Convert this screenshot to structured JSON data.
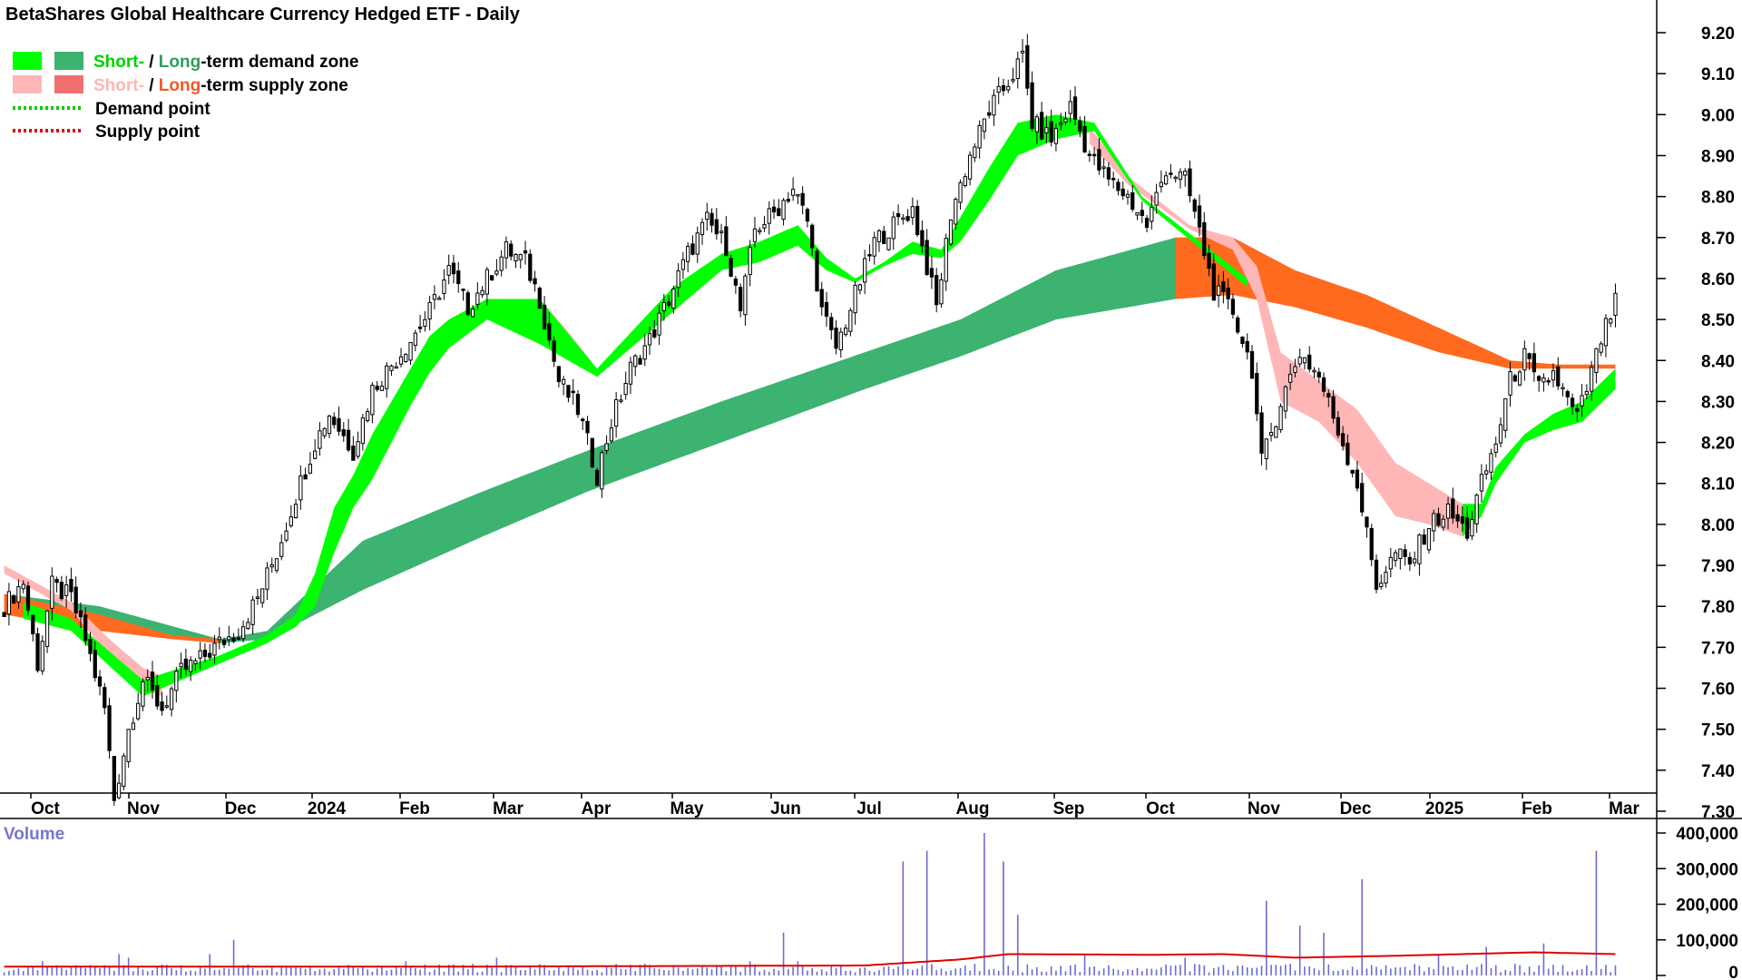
{
  "title": "BetaShares Global Healthcare Currency Hedged ETF - Daily",
  "legend": {
    "demand_short": "Short-",
    "demand_sep": " / ",
    "demand_long": "Long",
    "demand_rest": "-term demand zone",
    "supply_short": "Short-",
    "supply_sep": " / ",
    "supply_long": "Long",
    "supply_rest": "-term supply zone",
    "demand_point": "Demand point",
    "supply_point": "Supply point"
  },
  "volume_label": "Volume",
  "colors": {
    "short_demand": "#00ff00",
    "long_demand": "#3cb371",
    "short_supply": "#ffb6b6",
    "long_supply": "#ff6a1f",
    "demand_point": "#00cc00",
    "supply_point": "#dd0000",
    "volume_bar": "#6b6bd6",
    "volume_avg": "#e00000",
    "volume_label": "#7777cc",
    "candle_down": "#000000",
    "candle_up": "#ffffff"
  },
  "chart_data": {
    "type": "candlestick",
    "x_months": [
      "Oct",
      "Nov",
      "Dec",
      "2024",
      "Feb",
      "Mar",
      "Apr",
      "May",
      "Jun",
      "Jul",
      "Aug",
      "Sep",
      "Oct",
      "Nov",
      "Dec",
      "2025",
      "Feb",
      "Mar"
    ],
    "y_ticks": [
      "9.20",
      "9.10",
      "9.00",
      "8.90",
      "8.80",
      "8.70",
      "8.60",
      "8.50",
      "8.40",
      "8.30",
      "8.20",
      "8.10",
      "8.00",
      "7.90",
      "7.80",
      "7.70",
      "7.60",
      "7.50",
      "7.40",
      "7.30"
    ],
    "ylim": [
      7.25,
      9.25
    ],
    "volume_ticks": [
      "400,000",
      "300,000",
      "200,000",
      "100,000",
      "0"
    ],
    "volume_lim": [
      0,
      410000
    ],
    "close_anchors": [
      [
        0,
        7.8
      ],
      [
        4,
        7.86
      ],
      [
        7,
        7.66
      ],
      [
        10,
        7.85
      ],
      [
        14,
        7.82
      ],
      [
        17,
        7.72
      ],
      [
        21,
        7.55
      ],
      [
        23,
        7.33
      ],
      [
        26,
        7.5
      ],
      [
        29,
        7.62
      ],
      [
        33,
        7.55
      ],
      [
        37,
        7.64
      ],
      [
        41,
        7.67
      ],
      [
        45,
        7.71
      ],
      [
        49,
        7.74
      ],
      [
        53,
        7.82
      ],
      [
        57,
        7.93
      ],
      [
        61,
        8.07
      ],
      [
        65,
        8.2
      ],
      [
        68,
        8.27
      ],
      [
        73,
        8.18
      ],
      [
        77,
        8.33
      ],
      [
        81,
        8.39
      ],
      [
        85,
        8.45
      ],
      [
        89,
        8.52
      ],
      [
        93,
        8.62
      ],
      [
        97,
        8.53
      ],
      [
        101,
        8.6
      ],
      [
        105,
        8.67
      ],
      [
        109,
        8.64
      ],
      [
        112,
        8.55
      ],
      [
        116,
        8.35
      ],
      [
        120,
        8.28
      ],
      [
        124,
        8.12
      ],
      [
        127,
        8.25
      ],
      [
        131,
        8.38
      ],
      [
        135,
        8.45
      ],
      [
        139,
        8.55
      ],
      [
        143,
        8.66
      ],
      [
        147,
        8.74
      ],
      [
        151,
        8.68
      ],
      [
        154,
        8.52
      ],
      [
        157,
        8.72
      ],
      [
        161,
        8.76
      ],
      [
        165,
        8.82
      ],
      [
        168,
        8.74
      ],
      [
        171,
        8.52
      ],
      [
        174,
        8.43
      ],
      [
        178,
        8.56
      ],
      [
        182,
        8.69
      ],
      [
        186,
        8.73
      ],
      [
        190,
        8.77
      ],
      [
        193,
        8.63
      ],
      [
        195,
        8.53
      ],
      [
        198,
        8.76
      ],
      [
        202,
        8.9
      ],
      [
        206,
        9.01
      ],
      [
        210,
        9.08
      ],
      [
        213,
        9.14
      ],
      [
        215,
        8.98
      ],
      [
        219,
        8.94
      ],
      [
        223,
        9.02
      ],
      [
        227,
        8.9
      ],
      [
        231,
        8.84
      ],
      [
        235,
        8.8
      ],
      [
        239,
        8.73
      ],
      [
        243,
        8.87
      ],
      [
        247,
        8.84
      ],
      [
        249,
        8.76
      ],
      [
        253,
        8.57
      ],
      [
        257,
        8.52
      ],
      [
        261,
        8.38
      ],
      [
        263,
        8.15
      ],
      [
        267,
        8.3
      ],
      [
        271,
        8.42
      ],
      [
        275,
        8.36
      ],
      [
        279,
        8.23
      ],
      [
        283,
        8.1
      ],
      [
        287,
        7.85
      ],
      [
        291,
        7.93
      ],
      [
        294,
        7.9
      ],
      [
        298,
        8.0
      ],
      [
        302,
        8.03
      ],
      [
        306,
        7.98
      ],
      [
        309,
        8.1
      ],
      [
        312,
        8.2
      ],
      [
        315,
        8.35
      ],
      [
        318,
        8.41
      ],
      [
        321,
        8.33
      ],
      [
        324,
        8.37
      ],
      [
        327,
        8.3
      ],
      [
        329,
        8.26
      ],
      [
        331,
        8.33
      ],
      [
        334,
        8.45
      ],
      [
        337,
        8.54
      ]
    ],
    "short_demand_zone": {
      "upper": [
        [
          4,
          7.81
        ],
        [
          14,
          7.77
        ],
        [
          29,
          7.62
        ],
        [
          45,
          7.68
        ],
        [
          55,
          7.73
        ],
        [
          61,
          7.78
        ],
        [
          65,
          7.88
        ],
        [
          69,
          8.04
        ],
        [
          73,
          8.12
        ],
        [
          77,
          8.22
        ],
        [
          81,
          8.3
        ],
        [
          85,
          8.38
        ],
        [
          89,
          8.46
        ],
        [
          93,
          8.5
        ],
        [
          101,
          8.55
        ],
        [
          112,
          8.55
        ],
        [
          124,
          8.38
        ],
        [
          140,
          8.58
        ],
        [
          150,
          8.66
        ],
        [
          158,
          8.69
        ],
        [
          166,
          8.73
        ],
        [
          172,
          8.65
        ],
        [
          178,
          8.6
        ],
        [
          184,
          8.64
        ],
        [
          190,
          8.69
        ],
        [
          196,
          8.67
        ],
        [
          200,
          8.75
        ],
        [
          206,
          8.87
        ],
        [
          212,
          8.98
        ],
        [
          220,
          9.0
        ],
        [
          228,
          8.98
        ],
        [
          238,
          8.8
        ],
        [
          260,
          8.6
        ],
        [
          305,
          8.05
        ],
        [
          309,
          8.05
        ],
        [
          312,
          8.14
        ],
        [
          318,
          8.22
        ],
        [
          324,
          8.27
        ],
        [
          330,
          8.3
        ],
        [
          337,
          8.38
        ]
      ],
      "lower": [
        [
          4,
          7.77
        ],
        [
          14,
          7.74
        ],
        [
          29,
          7.58
        ],
        [
          45,
          7.66
        ],
        [
          55,
          7.71
        ],
        [
          61,
          7.75
        ],
        [
          65,
          7.8
        ],
        [
          69,
          7.93
        ],
        [
          73,
          8.04
        ],
        [
          77,
          8.11
        ],
        [
          81,
          8.2
        ],
        [
          85,
          8.29
        ],
        [
          89,
          8.37
        ],
        [
          93,
          8.43
        ],
        [
          101,
          8.5
        ],
        [
          112,
          8.44
        ],
        [
          124,
          8.36
        ],
        [
          140,
          8.52
        ],
        [
          150,
          8.62
        ],
        [
          158,
          8.64
        ],
        [
          166,
          8.68
        ],
        [
          172,
          8.62
        ],
        [
          178,
          8.59
        ],
        [
          184,
          8.63
        ],
        [
          190,
          8.66
        ],
        [
          196,
          8.65
        ],
        [
          200,
          8.69
        ],
        [
          206,
          8.79
        ],
        [
          212,
          8.9
        ],
        [
          220,
          8.94
        ],
        [
          228,
          8.96
        ],
        [
          238,
          8.79
        ],
        [
          260,
          8.58
        ],
        [
          305,
          7.97
        ],
        [
          309,
          8.02
        ],
        [
          312,
          8.1
        ],
        [
          318,
          8.2
        ],
        [
          324,
          8.23
        ],
        [
          330,
          8.25
        ],
        [
          337,
          8.33
        ]
      ]
    },
    "long_demand_zone": {
      "upper": [
        [
          0,
          7.83
        ],
        [
          20,
          7.8
        ],
        [
          45,
          7.72
        ],
        [
          55,
          7.74
        ],
        [
          75,
          7.96
        ],
        [
          100,
          8.08
        ],
        [
          122,
          8.18
        ],
        [
          150,
          8.3
        ],
        [
          180,
          8.42
        ],
        [
          200,
          8.5
        ],
        [
          220,
          8.62
        ],
        [
          245,
          8.7
        ],
        [
          255,
          8.7
        ]
      ],
      "lower": [
        [
          0,
          7.78
        ],
        [
          20,
          7.76
        ],
        [
          45,
          7.71
        ],
        [
          55,
          7.72
        ],
        [
          75,
          7.84
        ],
        [
          100,
          7.97
        ],
        [
          122,
          8.08
        ],
        [
          150,
          8.2
        ],
        [
          180,
          8.33
        ],
        [
          200,
          8.41
        ],
        [
          220,
          8.5
        ],
        [
          245,
          8.55
        ],
        [
          255,
          8.56
        ]
      ]
    },
    "short_supply_zone": {
      "upper": [
        [
          0,
          7.9
        ],
        [
          14,
          7.81
        ],
        [
          22,
          7.72
        ],
        [
          29,
          7.65
        ],
        [
          33,
          7.63
        ],
        [
          112,
          8.55
        ],
        [
          118,
          8.47
        ],
        [
          124,
          8.38
        ],
        [
          227,
          8.97
        ],
        [
          235,
          8.85
        ],
        [
          248,
          8.73
        ],
        [
          257,
          8.7
        ],
        [
          262,
          8.63
        ],
        [
          267,
          8.42
        ],
        [
          275,
          8.35
        ],
        [
          283,
          8.28
        ],
        [
          291,
          8.15
        ],
        [
          298,
          8.1
        ],
        [
          305,
          8.05
        ]
      ],
      "lower": [
        [
          0,
          7.88
        ],
        [
          14,
          7.79
        ],
        [
          22,
          7.68
        ],
        [
          29,
          7.6
        ],
        [
          33,
          7.58
        ],
        [
          112,
          8.52
        ],
        [
          118,
          8.44
        ],
        [
          124,
          8.36
        ],
        [
          227,
          8.93
        ],
        [
          235,
          8.83
        ],
        [
          248,
          8.72
        ],
        [
          257,
          8.67
        ],
        [
          262,
          8.55
        ],
        [
          267,
          8.3
        ],
        [
          275,
          8.25
        ],
        [
          283,
          8.15
        ],
        [
          291,
          8.02
        ],
        [
          298,
          8.0
        ],
        [
          305,
          7.97
        ]
      ]
    },
    "long_supply_zone": {
      "upper": [
        [
          0,
          7.83
        ],
        [
          20,
          7.78
        ],
        [
          35,
          7.73
        ],
        [
          45,
          7.72
        ],
        [
          245,
          8.7
        ],
        [
          257,
          8.7
        ],
        [
          270,
          8.62
        ],
        [
          285,
          8.56
        ],
        [
          300,
          8.48
        ],
        [
          315,
          8.4
        ],
        [
          325,
          8.39
        ],
        [
          337,
          8.39
        ]
      ],
      "lower": [
        [
          0,
          7.78
        ],
        [
          20,
          7.74
        ],
        [
          35,
          7.72
        ],
        [
          45,
          7.71
        ],
        [
          245,
          8.55
        ],
        [
          257,
          8.56
        ],
        [
          270,
          8.53
        ],
        [
          285,
          8.48
        ],
        [
          300,
          8.42
        ],
        [
          315,
          8.38
        ],
        [
          325,
          8.38
        ],
        [
          337,
          8.38
        ]
      ]
    },
    "volume": {
      "base": 22000,
      "spikes": [
        [
          8,
          40000
        ],
        [
          24,
          60000
        ],
        [
          26,
          50000
        ],
        [
          43,
          60000
        ],
        [
          48,
          100000
        ],
        [
          84,
          40000
        ],
        [
          103,
          50000
        ],
        [
          133,
          30000
        ],
        [
          156,
          40000
        ],
        [
          163,
          120000
        ],
        [
          166,
          40000
        ],
        [
          188,
          320000
        ],
        [
          193,
          350000
        ],
        [
          205,
          400000
        ],
        [
          209,
          320000
        ],
        [
          212,
          170000
        ],
        [
          226,
          60000
        ],
        [
          247,
          50000
        ],
        [
          264,
          210000
        ],
        [
          271,
          140000
        ],
        [
          276,
          120000
        ],
        [
          284,
          270000
        ],
        [
          300,
          60000
        ],
        [
          310,
          80000
        ],
        [
          322,
          90000
        ],
        [
          333,
          350000
        ]
      ],
      "average": [
        [
          0,
          25000
        ],
        [
          100,
          25000
        ],
        [
          180,
          28000
        ],
        [
          200,
          45000
        ],
        [
          210,
          60000
        ],
        [
          240,
          58000
        ],
        [
          255,
          60000
        ],
        [
          270,
          50000
        ],
        [
          290,
          55000
        ],
        [
          320,
          65000
        ],
        [
          337,
          60000
        ]
      ]
    }
  }
}
